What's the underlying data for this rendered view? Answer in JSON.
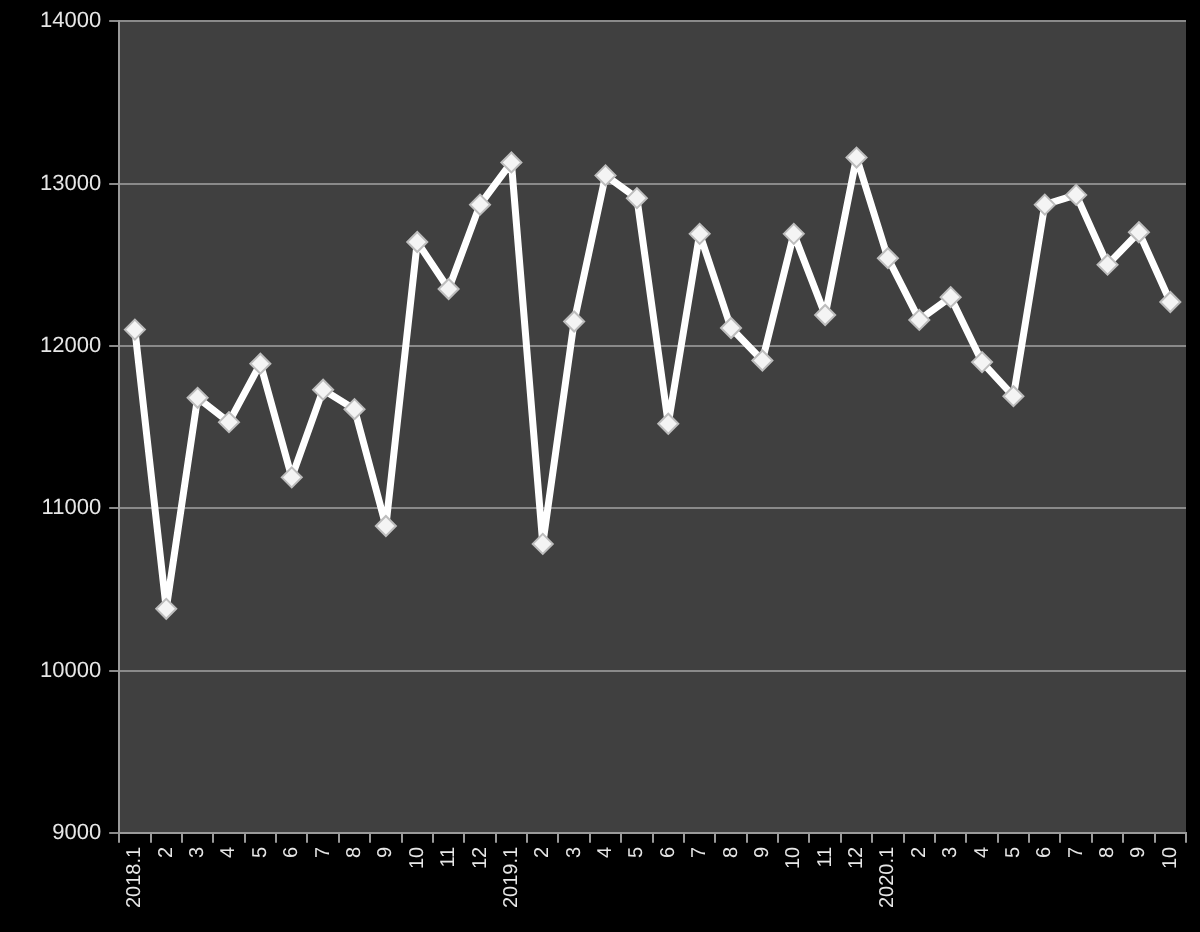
{
  "chart_data": {
    "type": "line",
    "categories": [
      "2018.1",
      "2",
      "3",
      "4",
      "5",
      "6",
      "7",
      "8",
      "9",
      "10",
      "11",
      "12",
      "2019.1",
      "2",
      "3",
      "4",
      "5",
      "6",
      "7",
      "8",
      "9",
      "10",
      "11",
      "12",
      "2020.1",
      "2",
      "3",
      "4",
      "5",
      "6",
      "7",
      "8",
      "9",
      "10"
    ],
    "values": [
      12100,
      10380,
      11680,
      11530,
      11890,
      11190,
      11730,
      11610,
      10890,
      12640,
      12350,
      12870,
      13130,
      10780,
      12150,
      13050,
      12910,
      11520,
      12690,
      12110,
      11910,
      12690,
      12190,
      13160,
      12540,
      12160,
      12300,
      11900,
      11690,
      12870,
      12930,
      12500,
      12700,
      12270
    ],
    "color": "#ffffff",
    "marker": "diamond",
    "line_style": "solid",
    "ylim": [
      9000,
      14000
    ],
    "yticks": [
      9000,
      10000,
      11000,
      12000,
      13000,
      14000
    ],
    "grid": "y"
  }
}
